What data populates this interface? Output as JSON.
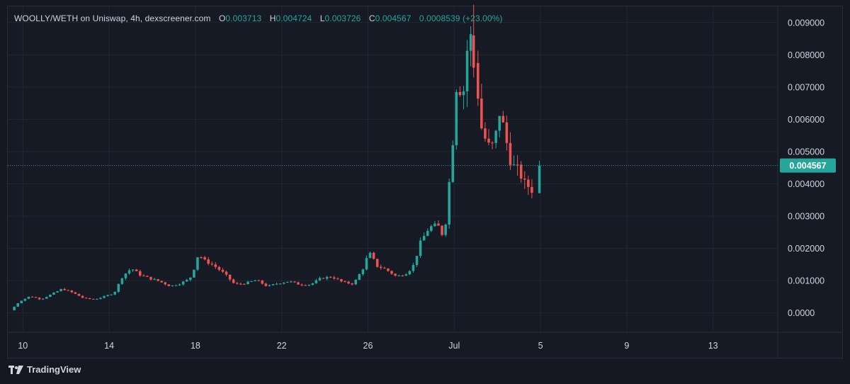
{
  "header": {
    "pair": "WOOLLY/WETH on Uniswap, 4h, dexscreener.com",
    "o_label": "O",
    "o_value": "0.003713",
    "h_label": "H",
    "h_value": "0.004724",
    "l_label": "L",
    "l_value": "0.003726",
    "c_label": "C",
    "c_value": "0.004567",
    "change": "0.0008539 (+23.00%)"
  },
  "footer": {
    "brand": "TradingView",
    "logo_icon": "tradingview-logo-icon"
  },
  "colors": {
    "up": "#26a69a",
    "down": "#ef5350",
    "background": "#161a25",
    "grid": "#232733",
    "text": "#d1d4dc"
  },
  "chart_data": {
    "type": "candlestick",
    "interval": "4h",
    "x_tick_labels": [
      "10",
      "14",
      "18",
      "22",
      "26",
      "Jul",
      "5",
      "9",
      "13"
    ],
    "x_tick_days": [
      10,
      14,
      18,
      22,
      26,
      30,
      34,
      38,
      42
    ],
    "y_tick_labels": [
      "0.0000",
      "0.001000",
      "0.002000",
      "0.003000",
      "0.004000",
      "0.005000",
      "0.006000",
      "0.007000",
      "0.008000",
      "0.009000"
    ],
    "ylim": [
      -0.0006,
      0.0095
    ],
    "last_price_label": "0.004567",
    "last_price": 0.004567,
    "anchors": [
      [
        9.6,
        8e-05
      ],
      [
        10.0,
        0.00035
      ],
      [
        10.5,
        0.00052
      ],
      [
        11.0,
        0.00042
      ],
      [
        11.5,
        0.00058
      ],
      [
        12.0,
        0.00075
      ],
      [
        12.5,
        0.00062
      ],
      [
        13.0,
        0.00045
      ],
      [
        13.5,
        0.00042
      ],
      [
        14.0,
        0.00052
      ],
      [
        14.4,
        0.00062
      ],
      [
        14.8,
        0.00115
      ],
      [
        15.2,
        0.00138
      ],
      [
        15.6,
        0.00118
      ],
      [
        16.0,
        0.00108
      ],
      [
        16.5,
        0.00098
      ],
      [
        17.0,
        0.00083
      ],
      [
        17.4,
        0.0009
      ],
      [
        17.8,
        0.00102
      ],
      [
        18.0,
        0.00115
      ],
      [
        18.3,
        0.00182
      ],
      [
        18.6,
        0.00162
      ],
      [
        19.0,
        0.00148
      ],
      [
        19.5,
        0.00122
      ],
      [
        20.0,
        0.00088
      ],
      [
        20.5,
        0.00092
      ],
      [
        21.0,
        0.00102
      ],
      [
        21.5,
        0.00082
      ],
      [
        22.0,
        0.00092
      ],
      [
        22.5,
        0.00098
      ],
      [
        23.0,
        0.00088
      ],
      [
        23.5,
        0.00088
      ],
      [
        24.0,
        0.00108
      ],
      [
        24.5,
        0.00112
      ],
      [
        25.0,
        0.00095
      ],
      [
        25.5,
        0.0009
      ],
      [
        26.0,
        0.00145
      ],
      [
        26.2,
        0.0019
      ],
      [
        26.6,
        0.00145
      ],
      [
        27.0,
        0.00135
      ],
      [
        27.5,
        0.00112
      ],
      [
        28.0,
        0.00125
      ],
      [
        28.3,
        0.0015
      ],
      [
        28.6,
        0.00218
      ],
      [
        29.0,
        0.00265
      ],
      [
        29.4,
        0.00272
      ],
      [
        29.7,
        0.00232
      ],
      [
        29.9,
        0.0038
      ],
      [
        30.0,
        0.00455
      ],
      [
        30.15,
        0.0057
      ],
      [
        30.3,
        0.00735
      ],
      [
        30.55,
        0.0065
      ],
      [
        30.75,
        0.0081
      ],
      [
        30.95,
        0.0086
      ],
      [
        31.2,
        0.0072
      ],
      [
        31.4,
        0.0058
      ],
      [
        31.7,
        0.0052
      ],
      [
        32.0,
        0.0052
      ],
      [
        32.3,
        0.0063
      ],
      [
        32.5,
        0.0056
      ],
      [
        32.8,
        0.0046
      ],
      [
        33.1,
        0.00448
      ],
      [
        33.35,
        0.0041
      ],
      [
        33.7,
        0.00385
      ],
      [
        33.85,
        0.00372
      ],
      [
        33.95,
        0.00457
      ]
    ],
    "highlight_candles": [
      {
        "day": 30.9,
        "open": 0.0086,
        "high": 0.00955,
        "low": 0.0073,
        "close": 0.0076
      },
      {
        "day": 33.95,
        "open": 0.00371,
        "high": 0.00472,
        "low": 0.00373,
        "close": 0.00457
      }
    ]
  }
}
